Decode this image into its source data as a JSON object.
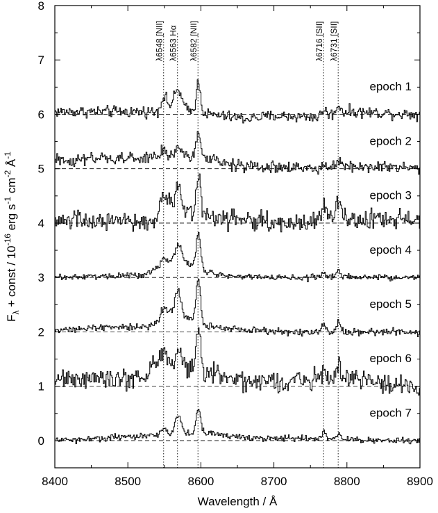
{
  "chart_data": {
    "type": "line",
    "xlabel": "Wavelength / Å",
    "ylabel": "F_λ + const / 10^-16 erg s^-1 cm^-2 Å^-1",
    "xlim": [
      8400,
      8900
    ],
    "ylim": [
      -0.5,
      8
    ],
    "x_ticks": [
      8400,
      8500,
      8600,
      8700,
      8800,
      8900
    ],
    "y_ticks": [
      0,
      1,
      2,
      3,
      4,
      5,
      6,
      7,
      8
    ],
    "x_tick_labels": [
      "8400",
      "8500",
      "8600",
      "8700",
      "8800",
      "8900"
    ],
    "y_tick_labels": [
      "0",
      "1",
      "2",
      "3",
      "4",
      "5",
      "6",
      "7",
      "8"
    ],
    "grid": false,
    "emission_lines": [
      {
        "label": "λ6548 [NII]",
        "x": 8549
      },
      {
        "label": "λ6563 Hα",
        "x": 8568
      },
      {
        "label": "λ6582 [NII]",
        "x": 8596
      },
      {
        "label": "λ6716 [SII]",
        "x": 8768
      },
      {
        "label": "λ6731 [SII]",
        "x": 8788
      }
    ],
    "series": [
      {
        "name": "epoch 1",
        "baseline": 6,
        "noise": 0.09,
        "continuum": [
          [
            8400,
            0.05
          ],
          [
            8540,
            0.05
          ],
          [
            8560,
            0.12
          ],
          [
            8610,
            0.0
          ],
          [
            8660,
            -0.08
          ],
          [
            8700,
            -0.03
          ],
          [
            8760,
            -0.05
          ],
          [
            8800,
            0.05
          ],
          [
            8900,
            0.0
          ]
        ],
        "peaks": [
          [
            8549,
            0.25,
            4
          ],
          [
            8568,
            0.35,
            5
          ],
          [
            8596,
            0.55,
            3
          ],
          [
            8768,
            0.12,
            3
          ],
          [
            8788,
            0.15,
            3
          ]
        ]
      },
      {
        "name": "epoch 2",
        "baseline": 5,
        "noise": 0.1,
        "continuum": [
          [
            8400,
            0.15
          ],
          [
            8540,
            0.2
          ],
          [
            8600,
            0.2
          ],
          [
            8650,
            0.05
          ],
          [
            8750,
            0.0
          ],
          [
            8800,
            0.05
          ],
          [
            8900,
            0.0
          ]
        ],
        "peaks": [
          [
            8549,
            0.15,
            4
          ],
          [
            8568,
            0.2,
            5
          ],
          [
            8596,
            0.5,
            3
          ],
          [
            8768,
            0.12,
            3
          ],
          [
            8788,
            0.15,
            3
          ]
        ]
      },
      {
        "name": "epoch 3",
        "baseline": 4,
        "noise": 0.16,
        "continuum": [
          [
            8400,
            0.05
          ],
          [
            8535,
            0.0
          ],
          [
            8545,
            0.35
          ],
          [
            8600,
            0.15
          ],
          [
            8700,
            0.0
          ],
          [
            8800,
            0.05
          ],
          [
            8900,
            0.1
          ]
        ],
        "peaks": [
          [
            8549,
            0.2,
            4
          ],
          [
            8568,
            0.45,
            4
          ],
          [
            8596,
            0.75,
            3
          ],
          [
            8768,
            0.25,
            3
          ],
          [
            8788,
            0.3,
            4
          ]
        ]
      },
      {
        "name": "epoch 4",
        "baseline": 3,
        "noise": 0.05,
        "continuum": [
          [
            8400,
            0.0
          ],
          [
            8520,
            0.05
          ],
          [
            8545,
            0.2
          ],
          [
            8570,
            0.3
          ],
          [
            8620,
            0.05
          ],
          [
            8700,
            0.0
          ],
          [
            8900,
            0.0
          ]
        ],
        "peaks": [
          [
            8549,
            0.15,
            4
          ],
          [
            8568,
            0.3,
            5
          ],
          [
            8596,
            0.65,
            3
          ],
          [
            8768,
            0.1,
            3
          ],
          [
            8788,
            0.12,
            3
          ]
        ]
      },
      {
        "name": "epoch 5",
        "baseline": 2,
        "noise": 0.06,
        "continuum": [
          [
            8400,
            0.05
          ],
          [
            8530,
            0.1
          ],
          [
            8560,
            0.35
          ],
          [
            8610,
            0.1
          ],
          [
            8700,
            0.0
          ],
          [
            8900,
            0.0
          ]
        ],
        "peaks": [
          [
            8549,
            0.2,
            4
          ],
          [
            8568,
            0.45,
            4
          ],
          [
            8596,
            0.8,
            3
          ],
          [
            8768,
            0.15,
            3
          ],
          [
            8788,
            0.2,
            3
          ]
        ]
      },
      {
        "name": "epoch 6",
        "baseline": 1,
        "noise": 0.17,
        "continuum": [
          [
            8400,
            0.15
          ],
          [
            8520,
            0.15
          ],
          [
            8540,
            0.45
          ],
          [
            8600,
            0.3
          ],
          [
            8680,
            0.05
          ],
          [
            8750,
            0.15
          ],
          [
            8820,
            0.1
          ],
          [
            8900,
            -0.05
          ]
        ],
        "peaks": [
          [
            8549,
            0.25,
            4
          ],
          [
            8568,
            0.3,
            4
          ],
          [
            8596,
            0.8,
            3
          ],
          [
            8768,
            0.2,
            3
          ],
          [
            8788,
            0.25,
            3
          ]
        ]
      },
      {
        "name": "epoch 7",
        "baseline": 0,
        "noise": 0.05,
        "continuum": [
          [
            8400,
            0.0
          ],
          [
            8540,
            0.1
          ],
          [
            8600,
            0.15
          ],
          [
            8660,
            0.05
          ],
          [
            8900,
            0.0
          ]
        ],
        "peaks": [
          [
            8549,
            0.15,
            4
          ],
          [
            8568,
            0.35,
            4
          ],
          [
            8596,
            0.45,
            3
          ],
          [
            8768,
            0.15,
            3
          ],
          [
            8788,
            0.12,
            3
          ]
        ]
      }
    ]
  }
}
